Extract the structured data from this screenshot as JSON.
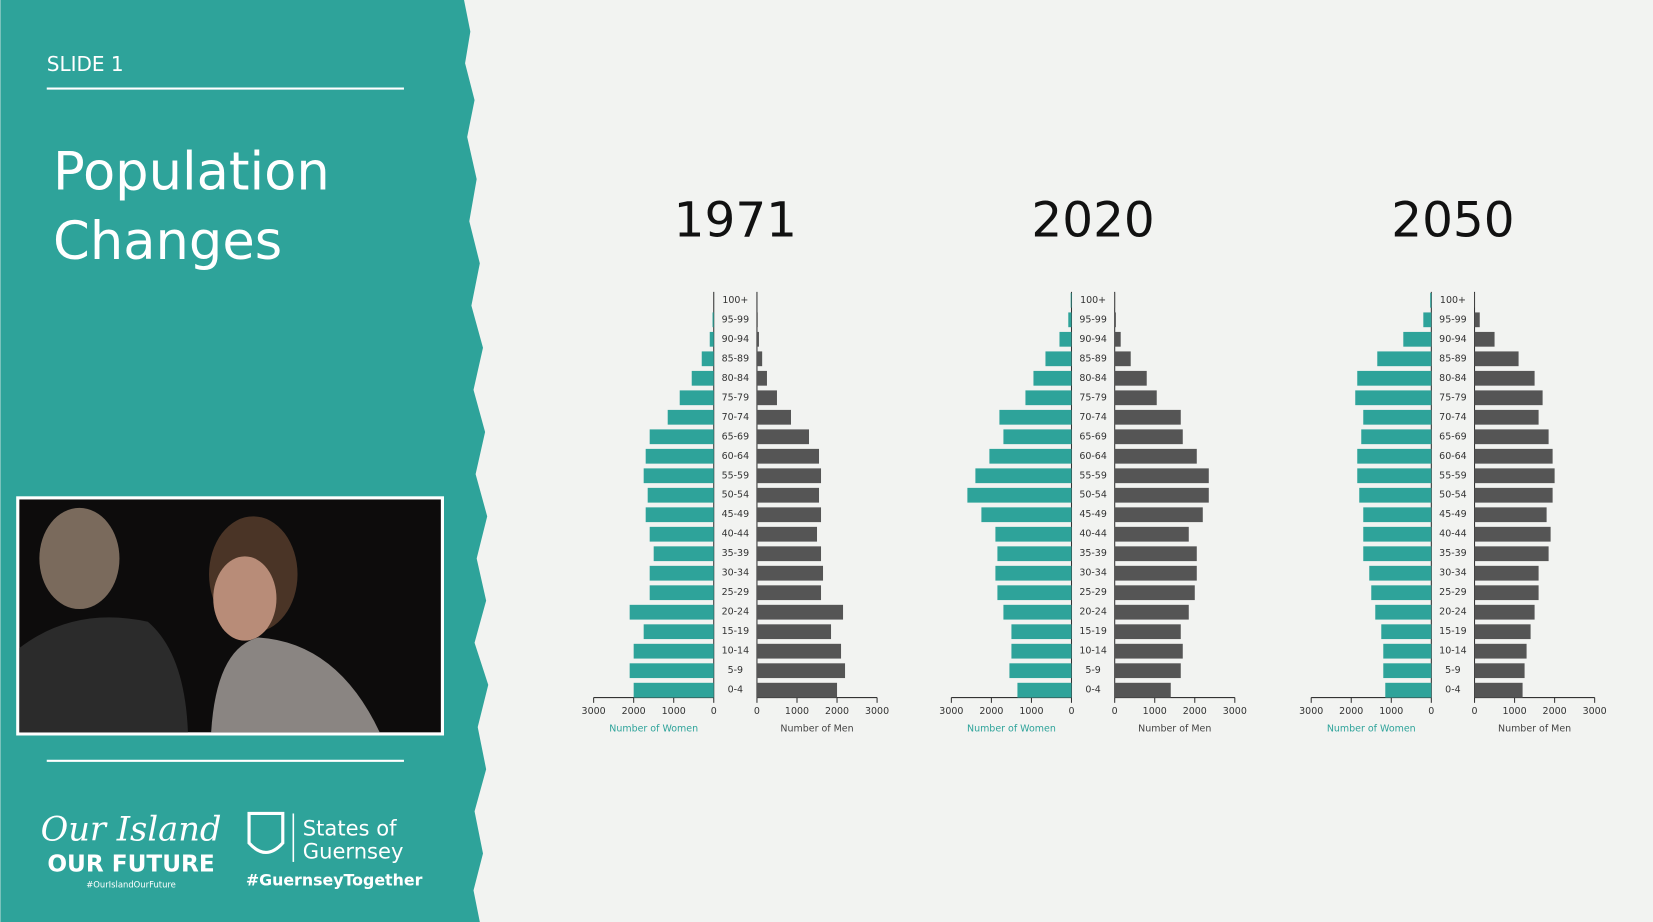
{
  "slide": {
    "label": "SLIDE 1",
    "title": [
      "Population",
      "Changes"
    ]
  },
  "footer": {
    "brand_1": "Our Island",
    "brand_2": "OUR FUTURE",
    "brand_tag": "#OurIslandOurFuture",
    "states_1": "States of",
    "states_2": "Guernsey",
    "states_tag": "#GuernseyTogether"
  },
  "chart_data": [
    {
      "type": "pyramid",
      "title": "1971",
      "categories": [
        "0-4",
        "5-9",
        "10-14",
        "15-19",
        "20-24",
        "25-29",
        "30-34",
        "35-39",
        "40-44",
        "45-49",
        "50-54",
        "55-59",
        "60-64",
        "65-69",
        "70-74",
        "75-79",
        "80-84",
        "85-89",
        "90-94",
        "95-99",
        "100+"
      ],
      "series": [
        {
          "name": "Number of Women",
          "color": "#2ea39a",
          "values": [
            2000,
            2100,
            2000,
            1750,
            2100,
            1600,
            1600,
            1500,
            1600,
            1700,
            1650,
            1750,
            1700,
            1600,
            1150,
            850,
            550,
            300,
            100,
            30,
            0
          ]
        },
        {
          "name": "Number of Men",
          "color": "#555555",
          "values": [
            2000,
            2200,
            2100,
            1850,
            2150,
            1600,
            1650,
            1600,
            1500,
            1600,
            1550,
            1600,
            1550,
            1300,
            850,
            500,
            250,
            130,
            50,
            20,
            0
          ]
        }
      ],
      "xlim": [
        0,
        3000
      ],
      "xticks": [
        0,
        1000,
        2000,
        3000
      ]
    },
    {
      "type": "pyramid",
      "title": "2020",
      "categories": [
        "0-4",
        "5-9",
        "10-14",
        "15-19",
        "20-24",
        "25-29",
        "30-34",
        "35-39",
        "40-44",
        "45-49",
        "50-54",
        "55-59",
        "60-64",
        "65-69",
        "70-74",
        "75-79",
        "80-84",
        "85-89",
        "90-94",
        "95-99",
        "100+"
      ],
      "series": [
        {
          "name": "Number of Women",
          "color": "#2ea39a",
          "values": [
            1350,
            1550,
            1500,
            1500,
            1700,
            1850,
            1900,
            1850,
            1900,
            2250,
            2600,
            2400,
            2050,
            1700,
            1800,
            1150,
            950,
            650,
            300,
            80,
            20
          ]
        },
        {
          "name": "Number of Men",
          "color": "#555555",
          "values": [
            1400,
            1650,
            1700,
            1650,
            1850,
            2000,
            2050,
            2050,
            1850,
            2200,
            2350,
            2350,
            2050,
            1700,
            1650,
            1050,
            800,
            400,
            150,
            30,
            10
          ]
        }
      ],
      "xlim": [
        0,
        3000
      ],
      "xticks": [
        0,
        1000,
        2000,
        3000
      ]
    },
    {
      "type": "pyramid",
      "title": "2050",
      "categories": [
        "0-4",
        "5-9",
        "10-14",
        "15-19",
        "20-24",
        "25-29",
        "30-34",
        "35-39",
        "40-44",
        "45-49",
        "50-54",
        "55-59",
        "60-64",
        "65-69",
        "70-74",
        "75-79",
        "80-84",
        "85-89",
        "90-94",
        "95-99",
        "100+"
      ],
      "series": [
        {
          "name": "Number of Women",
          "color": "#2ea39a",
          "values": [
            1150,
            1200,
            1200,
            1250,
            1400,
            1500,
            1550,
            1700,
            1700,
            1700,
            1800,
            1850,
            1850,
            1750,
            1700,
            1900,
            1850,
            1350,
            700,
            200,
            30
          ]
        },
        {
          "name": "Number of Men",
          "color": "#555555",
          "values": [
            1200,
            1250,
            1300,
            1400,
            1500,
            1600,
            1600,
            1850,
            1900,
            1800,
            1950,
            2000,
            1950,
            1850,
            1600,
            1700,
            1500,
            1100,
            500,
            130,
            10
          ]
        }
      ],
      "xlim": [
        0,
        3000
      ],
      "xticks": [
        0,
        1000,
        2000,
        3000
      ]
    }
  ]
}
